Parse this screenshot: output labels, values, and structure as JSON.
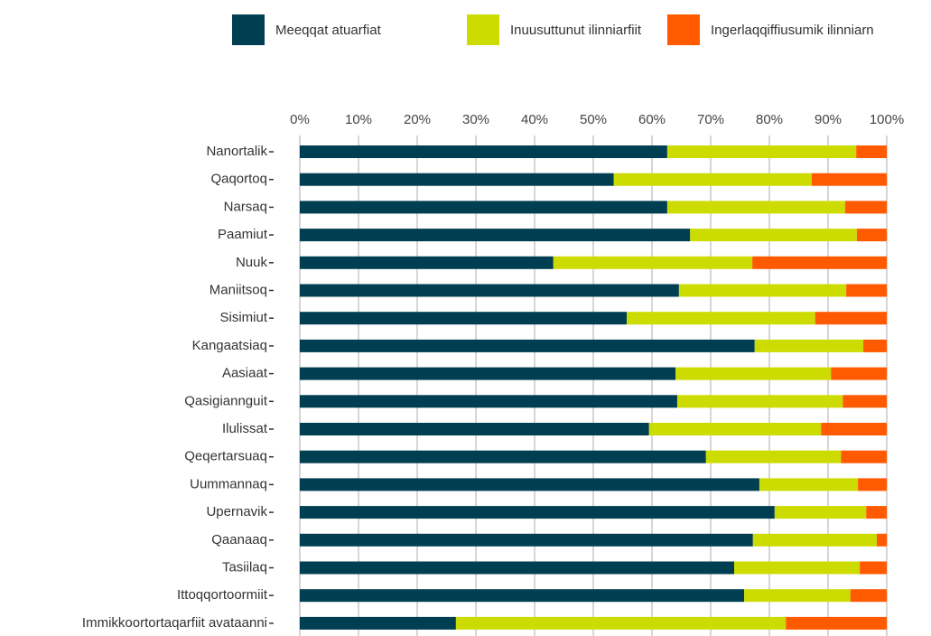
{
  "chart_data": {
    "type": "stacked-bar-horizontal",
    "categories": [
      "Nanortalik",
      "Qaqortoq",
      "Narsaq",
      "Paamiut",
      "Nuuk",
      "Maniitsoq",
      "Sisimiut",
      "Kangaatsiaq",
      "Aasiaat",
      "Qasigiannguit",
      "Ilulissat",
      "Qeqertarsuaq",
      "Uummannaq",
      "Upernavik",
      "Qaanaaq",
      "Tasiilaq",
      "Ittoqqortoormiit",
      "Immikkoortortaqarfiit avataanni"
    ],
    "series": [
      {
        "name": "Meeqqat atuarfiat",
        "color": "#003f52",
        "values": [
          62.6,
          53.5,
          62.6,
          66.5,
          43.2,
          64.6,
          55.7,
          77.5,
          64.0,
          64.3,
          59.5,
          69.2,
          78.3,
          80.9,
          77.2,
          74.0,
          75.7,
          26.6
        ]
      },
      {
        "name": "Inuusuttunut ilinniarfiit",
        "color": "#cddc00",
        "values": [
          32.2,
          33.7,
          30.3,
          28.4,
          33.9,
          28.5,
          32.1,
          18.5,
          26.5,
          28.2,
          29.3,
          23.0,
          16.8,
          15.6,
          21.1,
          21.4,
          18.1,
          56.2
        ]
      },
      {
        "name": "Ingerlaqqiffiusumik ilinniarn",
        "color": "#ff5a00",
        "values": [
          5.2,
          12.8,
          7.1,
          5.1,
          22.9,
          6.9,
          12.2,
          4.0,
          9.5,
          7.5,
          11.2,
          7.8,
          4.9,
          3.5,
          1.7,
          4.6,
          6.2,
          17.2
        ]
      }
    ],
    "xlim": [
      0,
      100
    ],
    "xticks": [
      {
        "value": 0,
        "label": "0%"
      },
      {
        "value": 10,
        "label": "10%"
      },
      {
        "value": 20,
        "label": "20%"
      },
      {
        "value": 30,
        "label": "30%"
      },
      {
        "value": 40,
        "label": "40%"
      },
      {
        "value": 50,
        "label": "50%"
      },
      {
        "value": 60,
        "label": "60%"
      },
      {
        "value": 70,
        "label": "70%"
      },
      {
        "value": 80,
        "label": "80%"
      },
      {
        "value": 90,
        "label": "90%"
      },
      {
        "value": 100,
        "label": "100%"
      }
    ],
    "grid": true,
    "legend": "top"
  }
}
